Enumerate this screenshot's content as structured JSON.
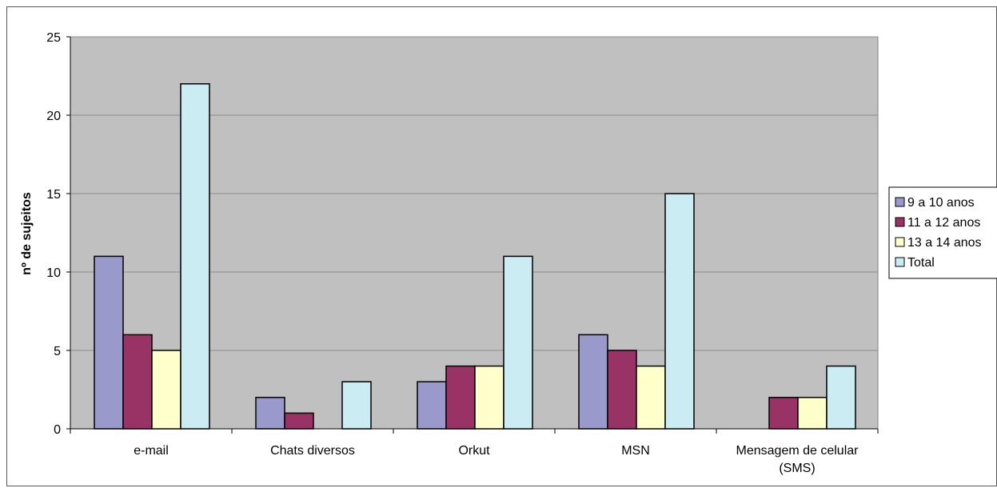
{
  "chart_data": {
    "type": "bar",
    "title": "",
    "xlabel": "",
    "ylabel": "nº de sujeitos",
    "ylim": [
      0,
      25
    ],
    "yticks": [
      0,
      5,
      10,
      15,
      20,
      25
    ],
    "grid": true,
    "legend_position": "right",
    "categories": [
      [
        "e-mail"
      ],
      [
        "Chats diversos"
      ],
      [
        "Orkut"
      ],
      [
        "MSN"
      ],
      [
        "Mensagem de celular",
        "(SMS)"
      ]
    ],
    "series": [
      {
        "name": "9 a 10 anos",
        "color": "#9999cc",
        "values": [
          11,
          2,
          3,
          6,
          0
        ]
      },
      {
        "name": "11 a 12 anos",
        "color": "#993366",
        "values": [
          6,
          1,
          4,
          5,
          2
        ]
      },
      {
        "name": "13 a 14 anos",
        "color": "#ffffcc",
        "values": [
          5,
          0,
          4,
          4,
          2
        ]
      },
      {
        "name": "Total",
        "color": "#ccecf4",
        "values": [
          22,
          3,
          11,
          15,
          4
        ]
      }
    ],
    "plot_background": "#c0c0c0"
  }
}
